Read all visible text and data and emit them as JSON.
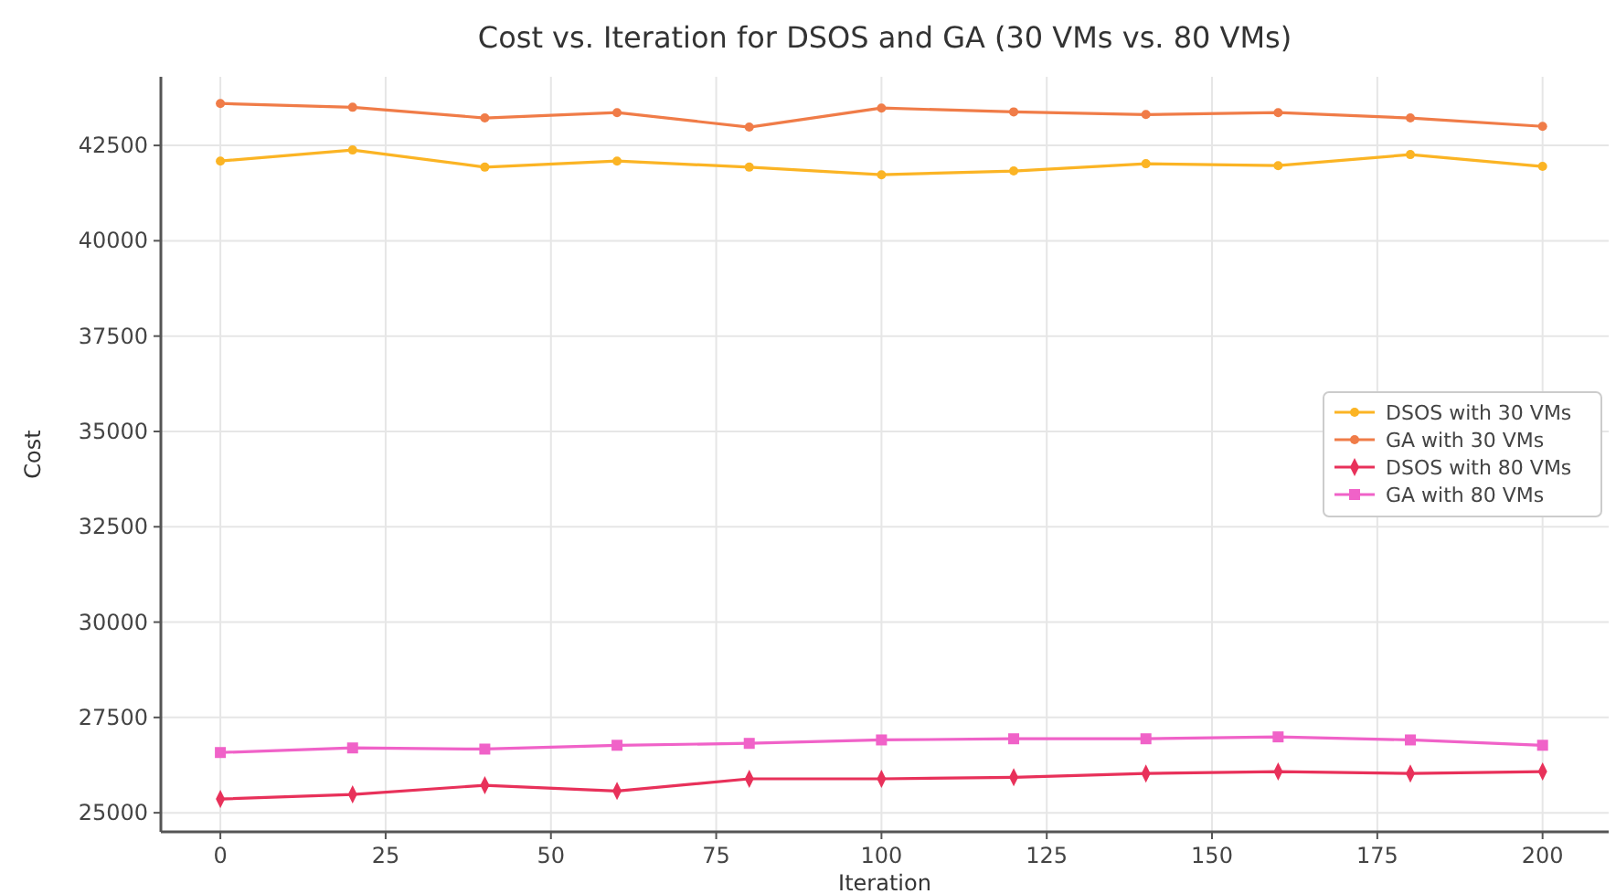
{
  "chart_data": {
    "type": "line",
    "title": "Cost vs. Iteration for DSOS and GA (30 VMs vs. 80 VMs)",
    "xlabel": "Iteration",
    "ylabel": "Cost",
    "x": [
      0,
      20,
      40,
      60,
      80,
      100,
      120,
      140,
      160,
      180,
      200
    ],
    "xlim": [
      -9,
      210
    ],
    "xticks": [
      0,
      25,
      50,
      75,
      100,
      125,
      150,
      175,
      200
    ],
    "ylim": [
      24500,
      44300
    ],
    "yticks": [
      25000,
      27500,
      30000,
      32500,
      35000,
      37500,
      40000,
      42500
    ],
    "grid": true,
    "legend": "right",
    "series": [
      {
        "name": "DSOS with 30 VMs",
        "color": "#fbb424",
        "marker": "circle",
        "values": [
          42090,
          42380,
          41930,
          42090,
          41930,
          41730,
          41830,
          42020,
          41970,
          42260,
          41950
        ]
      },
      {
        "name": "GA with 30 VMs",
        "color": "#f07c48",
        "marker": "circle",
        "values": [
          43600,
          43500,
          43220,
          43360,
          42980,
          43480,
          43380,
          43310,
          43360,
          43220,
          43000
        ]
      },
      {
        "name": "DSOS with 80 VMs",
        "color": "#e8315a",
        "marker": "diamond",
        "values": [
          25360,
          25480,
          25720,
          25570,
          25890,
          25890,
          25930,
          26030,
          26080,
          26030,
          26080
        ]
      },
      {
        "name": "GA with 80 VMs",
        "color": "#f062c8",
        "marker": "square",
        "values": [
          26580,
          26700,
          26670,
          26770,
          26820,
          26910,
          26940,
          26940,
          26990,
          26910,
          26770
        ]
      }
    ]
  }
}
